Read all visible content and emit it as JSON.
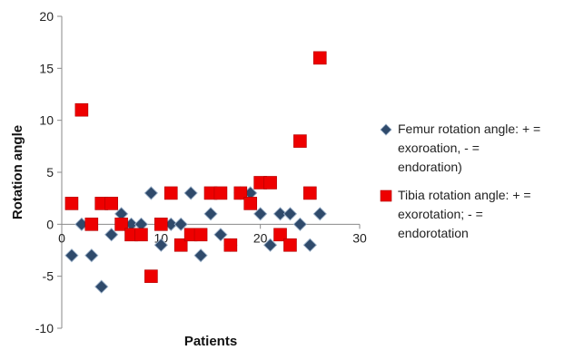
{
  "chart_data": {
    "type": "scatter",
    "title": "",
    "xlabel": "Patients",
    "ylabel": "Rotation angle",
    "xlim": [
      0,
      30
    ],
    "ylim": [
      -10,
      20
    ],
    "xticks": [
      0,
      10,
      20,
      30
    ],
    "yticks": [
      -10,
      -5,
      0,
      5,
      10,
      15,
      20
    ],
    "grid": false,
    "legend_position": "right",
    "series": [
      {
        "name": "Femur rotation angle: + = exoroation, - = endoration)",
        "marker": "diamond",
        "color": "#2f4a6b",
        "x": [
          1,
          2,
          3,
          4,
          5,
          6,
          7,
          8,
          9,
          10,
          11,
          12,
          13,
          14,
          15,
          16,
          17,
          18,
          19,
          20,
          21,
          22,
          23,
          24,
          25,
          26
        ],
        "y": [
          -3,
          0,
          -3,
          -6,
          -1,
          1,
          0,
          0,
          3,
          -2,
          0,
          0,
          3,
          -3,
          1,
          -1,
          -2,
          3,
          3,
          1,
          -2,
          1,
          1,
          0,
          -2,
          1
        ]
      },
      {
        "name": "Tibia rotation angle: + = exorotation; - = endorotation",
        "marker": "square",
        "color": "#ee0000",
        "x": [
          1,
          2,
          3,
          4,
          5,
          6,
          7,
          8,
          9,
          10,
          11,
          12,
          13,
          14,
          15,
          16,
          17,
          18,
          19,
          20,
          21,
          22,
          23,
          24,
          25,
          26
        ],
        "y": [
          2,
          11,
          0,
          2,
          2,
          0,
          -1,
          -1,
          -5,
          0,
          3,
          -2,
          -1,
          -1,
          3,
          3,
          -2,
          3,
          2,
          4,
          4,
          -1,
          -2,
          8,
          3,
          16
        ]
      }
    ]
  },
  "legend": {
    "entries": [
      {
        "text": "Femur rotation angle: + =\nexoroation, - =\nendoration)",
        "icon": "diamond-marker"
      },
      {
        "text": "Tibia rotation angle: + =\nexorotation; - =\nendorotation",
        "icon": "square-marker"
      }
    ]
  }
}
